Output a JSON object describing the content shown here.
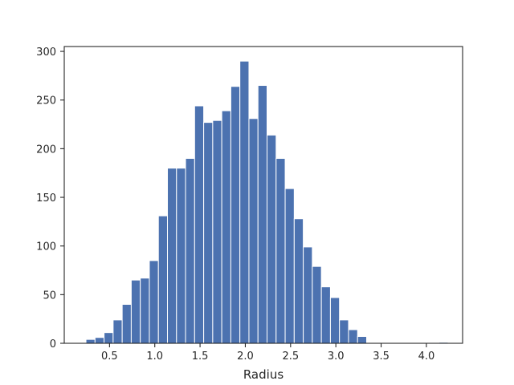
{
  "chart_data": {
    "type": "bar",
    "title": "",
    "xlabel": "Radius",
    "ylabel": "",
    "xlim": [
      0.0,
      4.4
    ],
    "ylim": [
      0,
      305
    ],
    "grid": false,
    "bar_color": "#4c72b0",
    "edge_color": "#ffffff",
    "x_ticks": [
      0.5,
      1.0,
      1.5,
      2.0,
      2.5,
      3.0,
      3.5,
      4.0
    ],
    "x_tick_labels": [
      "0.5",
      "1.0",
      "1.5",
      "2.0",
      "2.5",
      "3.0",
      "3.5",
      "4.0"
    ],
    "y_ticks": [
      0,
      50,
      100,
      150,
      200,
      250,
      300
    ],
    "y_tick_labels": [
      "0",
      "50",
      "100",
      "150",
      "200",
      "250",
      "300"
    ],
    "bin_edges": [
      0.24,
      0.34,
      0.44,
      0.54,
      0.64,
      0.74,
      0.84,
      0.94,
      1.04,
      1.14,
      1.24,
      1.34,
      1.44,
      1.54,
      1.64,
      1.74,
      1.84,
      1.94,
      2.04,
      2.14,
      2.24,
      2.34,
      2.44,
      2.54,
      2.64,
      2.74,
      2.84,
      2.94,
      3.04,
      3.14,
      3.24,
      3.34,
      3.44,
      3.54,
      3.64,
      3.74,
      3.84,
      3.94,
      4.04,
      4.14,
      4.24
    ],
    "values": [
      4,
      6,
      11,
      24,
      40,
      65,
      67,
      85,
      131,
      180,
      180,
      190,
      244,
      227,
      229,
      239,
      264,
      290,
      231,
      265,
      214,
      190,
      159,
      128,
      99,
      79,
      58,
      47,
      24,
      14,
      7,
      0,
      0,
      0,
      0,
      0,
      0,
      0,
      0,
      1
    ]
  }
}
